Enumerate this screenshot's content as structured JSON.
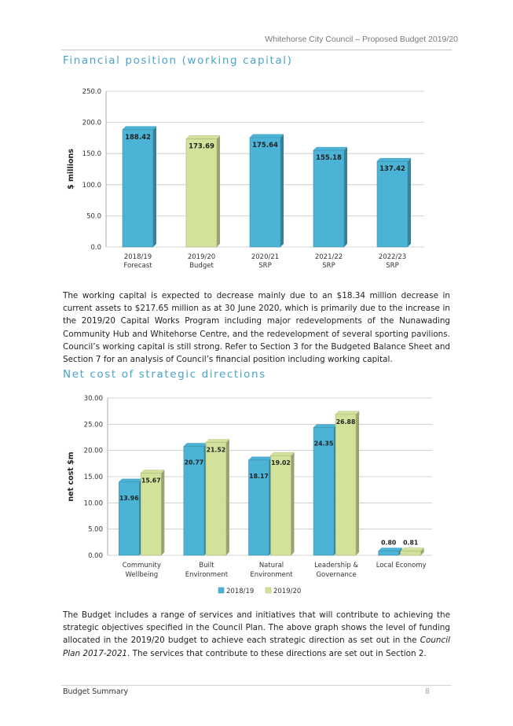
{
  "header": {
    "title": "Whitehorse City Council – Proposed Budget 2019/20"
  },
  "section1": {
    "heading": "Financial position (working capital)",
    "paragraph": "The working capital is expected to decrease mainly due to an $18.34 million decrease in current assets to $217.65 million as at 30 June 2020, which is primarily due to the increase in the 2019/20 Capital Works Program including major redevelopments of the Nunawading Community Hub and Whitehorse Centre, and the redevelopment of several sporting pavilions. Council’s working capital is still strong. Refer to Section 3 for the Budgeted Balance Sheet and Section 7 for an analysis of Council’s financial position including working capital."
  },
  "section2": {
    "heading": "Net cost of strategic directions",
    "paragraph_before": "The Budget includes a range of services and initiatives that will contribute to achieving the strategic objectives specified in the Council Plan. The above graph shows the level of funding allocated in the 2019/20 budget to achieve each strategic direction as set out in the ",
    "paragraph_italic": "Council Plan 2017-2021",
    "paragraph_after": ". The services that contribute to these directions are set out in Section 2."
  },
  "footer": {
    "left": "Budget Summary",
    "page": "8"
  },
  "chart_data": [
    {
      "type": "bar",
      "ylabel": "$ millions",
      "ylim": [
        0,
        250
      ],
      "yticks": [
        "0.0",
        "50.0",
        "100.0",
        "150.0",
        "200.0",
        "250.0"
      ],
      "grid": true,
      "categories": [
        [
          "2018/19",
          "Forecast"
        ],
        [
          "2019/20",
          "Budget"
        ],
        [
          "2020/21",
          "SRP"
        ],
        [
          "2021/22",
          "SRP"
        ],
        [
          "2022/23",
          "SRP"
        ]
      ],
      "values": [
        188.42,
        173.69,
        175.64,
        155.18,
        137.42
      ],
      "labels": [
        "188.42",
        "173.69",
        "175.64",
        "155.18",
        "137.42"
      ],
      "colors": [
        "#4bb3d6",
        "#d3e29b",
        "#4bb3d6",
        "#4bb3d6",
        "#4bb3d6"
      ]
    },
    {
      "type": "bar",
      "ylabel": "net cost $m",
      "ylim": [
        0,
        30
      ],
      "yticks": [
        "0.00",
        "5.00",
        "10.00",
        "15.00",
        "20.00",
        "25.00",
        "30.00"
      ],
      "grid": true,
      "legend": "bottom",
      "categories": [
        [
          "Community",
          "Wellbeing"
        ],
        [
          "Built",
          "Environment"
        ],
        [
          "Natural",
          "Environment"
        ],
        [
          "Leadership &",
          "Governance"
        ],
        [
          "Local Economy"
        ]
      ],
      "series": [
        {
          "name": "2018/19",
          "values": [
            13.96,
            20.77,
            18.17,
            24.35,
            0.8
          ],
          "labels": [
            "13.96",
            "20.77",
            "18.17",
            "24.35",
            "0.80"
          ],
          "color": "#4bb3d6"
        },
        {
          "name": "2019/20",
          "values": [
            15.67,
            21.52,
            19.02,
            26.88,
            0.81
          ],
          "labels": [
            "15.67",
            "21.52",
            "19.02",
            "26.88",
            "0.81"
          ],
          "color": "#d3e29b"
        }
      ]
    }
  ]
}
